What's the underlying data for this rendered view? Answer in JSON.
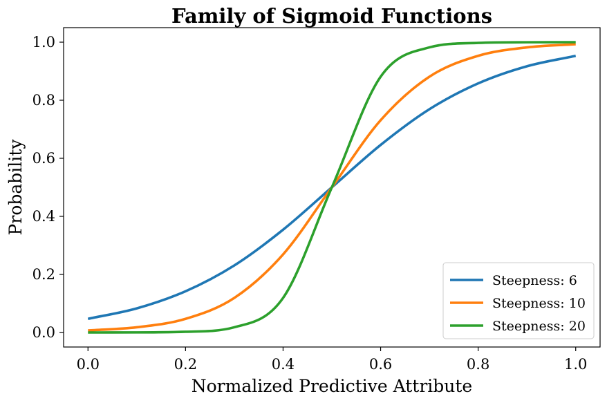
{
  "chart_data": {
    "type": "line",
    "title": "Family of Sigmoid Functions",
    "xlabel": "Normalized Predictive Attribute",
    "ylabel": "Probability",
    "xlim": [
      -0.05,
      1.05
    ],
    "ylim": [
      -0.05,
      1.05
    ],
    "xticks": [
      0.0,
      0.2,
      0.4,
      0.6,
      0.8,
      1.0
    ],
    "yticks": [
      0.0,
      0.2,
      0.4,
      0.6,
      0.8,
      1.0
    ],
    "xtick_labels": [
      "0.0",
      "0.2",
      "0.4",
      "0.6",
      "0.8",
      "1.0"
    ],
    "ytick_labels": [
      "0.0",
      "0.2",
      "0.4",
      "0.6",
      "0.8",
      "1.0"
    ],
    "grid": false,
    "legend_position": "bottom-right",
    "series": [
      {
        "name": "Steepness: 6",
        "color": "#1f77b4",
        "x": [
          0.0,
          0.1,
          0.2,
          0.3,
          0.4,
          0.5,
          0.6,
          0.7,
          0.8,
          0.9,
          1.0
        ],
        "y": [
          0.047,
          0.083,
          0.142,
          0.231,
          0.354,
          0.5,
          0.646,
          0.769,
          0.858,
          0.917,
          0.953
        ]
      },
      {
        "name": "Steepness: 10",
        "color": "#ff7f0e",
        "x": [
          0.0,
          0.1,
          0.2,
          0.3,
          0.4,
          0.5,
          0.6,
          0.7,
          0.8,
          0.9,
          1.0
        ],
        "y": [
          0.007,
          0.018,
          0.047,
          0.119,
          0.269,
          0.5,
          0.731,
          0.881,
          0.953,
          0.982,
          0.993
        ]
      },
      {
        "name": "Steepness: 20",
        "color": "#2ca02c",
        "x": [
          0.0,
          0.1,
          0.2,
          0.3,
          0.4,
          0.5,
          0.6,
          0.7,
          0.8,
          0.9,
          1.0
        ],
        "y": [
          0.0,
          0.0003,
          0.0025,
          0.018,
          0.119,
          0.5,
          0.881,
          0.982,
          0.9975,
          0.9997,
          1.0
        ]
      }
    ]
  }
}
